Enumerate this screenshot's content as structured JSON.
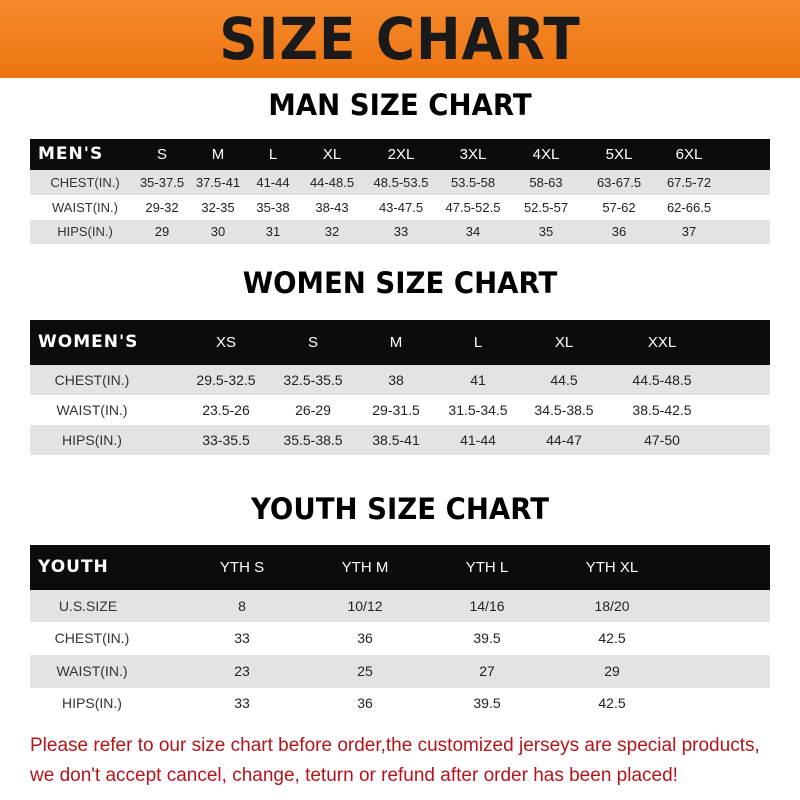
{
  "banner": "SIZE CHART",
  "men": {
    "title": "MAN SIZE CHART",
    "header": "MEN'S",
    "sizes": [
      "S",
      "M",
      "L",
      "XL",
      "2XL",
      "3XL",
      "4XL",
      "5XL",
      "6XL"
    ],
    "rows": [
      {
        "label": "CHEST(IN.)",
        "values": [
          "35-37.5",
          "37.5-41",
          "41-44",
          "44-48.5",
          "48.5-53.5",
          "53.5-58",
          "58-63",
          "63-67.5",
          "67.5-72"
        ]
      },
      {
        "label": "WAIST(IN.)",
        "values": [
          "29-32",
          "32-35",
          "35-38",
          "38-43",
          "43-47.5",
          "47.5-52.5",
          "52.5-57",
          "57-62",
          "62-66.5"
        ]
      },
      {
        "label": "HIPS(IN.)",
        "values": [
          "29",
          "30",
          "31",
          "32",
          "33",
          "34",
          "35",
          "36",
          "37"
        ]
      }
    ]
  },
  "women": {
    "title": "WOMEN SIZE CHART",
    "header": "WOMEN'S",
    "sizes": [
      "XS",
      "S",
      "M",
      "L",
      "XL",
      "XXL"
    ],
    "rows": [
      {
        "label": "CHEST(IN.)",
        "values": [
          "29.5-32.5",
          "32.5-35.5",
          "38",
          "41",
          "44.5",
          "44.5-48.5"
        ]
      },
      {
        "label": "WAIST(IN.)",
        "values": [
          "23.5-26",
          "26-29",
          "29-31.5",
          "31.5-34.5",
          "34.5-38.5",
          "38.5-42.5"
        ]
      },
      {
        "label": "HIPS(IN.)",
        "values": [
          "33-35.5",
          "35.5-38.5",
          "38.5-41",
          "41-44",
          "44-47",
          "47-50"
        ]
      }
    ]
  },
  "youth": {
    "title": "YOUTH SIZE CHART",
    "header": "YOUTH",
    "sizes": [
      "YTH S",
      "YTH M",
      "YTH L",
      "YTH XL"
    ],
    "rows": [
      {
        "label": "U.S.SIZE",
        "values": [
          "8",
          "10/12",
          "14/16",
          "18/20"
        ]
      },
      {
        "label": "CHEST(IN.)",
        "values": [
          "33",
          "36",
          "39.5",
          "42.5"
        ]
      },
      {
        "label": "WAIST(IN.)",
        "values": [
          "23",
          "25",
          "27",
          "29"
        ]
      },
      {
        "label": "HIPS(IN.)",
        "values": [
          "33",
          "36",
          "39.5",
          "42.5"
        ]
      }
    ]
  },
  "notice": [
    "Please refer to our size chart before order,the customized jerseys are special products,",
    "we don't accept cancel, change, teturn or refund after order has been placed!"
  ],
  "colors": {
    "banner": "#ee7412",
    "header_row": "#0c0c0c",
    "stripe": "#e3e3e3",
    "notice": "#b3151a"
  }
}
